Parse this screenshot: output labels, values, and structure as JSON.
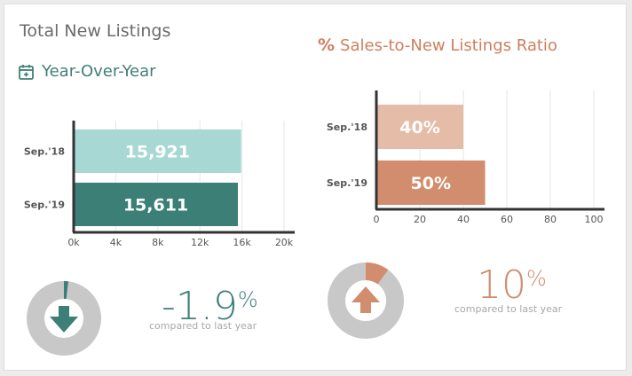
{
  "header": {
    "title": "Total New Listings",
    "subtitle": "Year-Over-Year"
  },
  "ratio": {
    "icon_text": "%",
    "title": "Sales-to-New Listings Ratio"
  },
  "colors": {
    "teal_light": "#a8d8d3",
    "teal_dark": "#3c7f77",
    "salmon_light": "#e5bca8",
    "salmon_dark": "#d28c6e",
    "donut_gray": "#c8c8c8",
    "axis": "#333333"
  },
  "chart_data": [
    {
      "type": "bar",
      "orientation": "horizontal",
      "categories": [
        "Sep.'18",
        "Sep.'19"
      ],
      "values": [
        15921,
        15611
      ],
      "value_labels": [
        "15,921",
        "15,611"
      ],
      "xlim": [
        0,
        20000
      ],
      "xticks": [
        0,
        4000,
        8000,
        12000,
        16000,
        20000
      ],
      "xtick_labels": [
        "0k",
        "4k",
        "8k",
        "12k",
        "16k",
        "20k"
      ],
      "grid": true
    },
    {
      "type": "bar",
      "orientation": "horizontal",
      "categories": [
        "Sep.'18",
        "Sep.'19"
      ],
      "values": [
        40,
        50
      ],
      "value_labels": [
        "40%",
        "50%"
      ],
      "xlim": [
        0,
        100
      ],
      "xticks": [
        0,
        20,
        40,
        60,
        80,
        100
      ],
      "xtick_labels": [
        "0",
        "20",
        "40",
        "60",
        "80",
        "100"
      ],
      "grid": true
    },
    {
      "type": "pie",
      "style": "donut",
      "value_fraction": 0.019,
      "direction": "down",
      "value_text": "-1.9",
      "unit": "%",
      "caption": "compared to last year"
    },
    {
      "type": "pie",
      "style": "donut",
      "value_fraction": 0.1,
      "direction": "up",
      "value_text": "10",
      "unit": "%",
      "caption": "compared to last year"
    }
  ]
}
